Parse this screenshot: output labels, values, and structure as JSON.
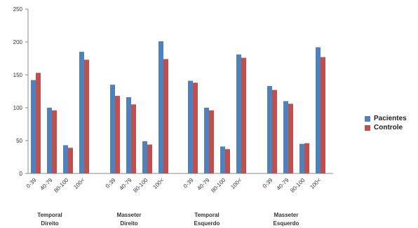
{
  "chart_data": {
    "type": "bar",
    "ylim": [
      0,
      250
    ],
    "yticks": [
      "0",
      "50",
      "100",
      "150",
      "200",
      "250"
    ],
    "categories": [
      "0-39",
      "40-79",
      "80-100",
      "100<"
    ],
    "groups": [
      {
        "label": "Temporal",
        "label2": "Direito"
      },
      {
        "label": "Masseter",
        "label2": "Direito"
      },
      {
        "label": "Temporal",
        "label2": "Esquerdo"
      },
      {
        "label": "Masseter",
        "label2": "Esquerdo"
      }
    ],
    "series": [
      {
        "name": "Pacientes",
        "color": "#4f81bd",
        "values": [
          [
            142,
            100,
            43,
            185
          ],
          [
            135,
            116,
            49,
            201
          ],
          [
            141,
            100,
            41,
            181
          ],
          [
            133,
            110,
            45,
            192
          ]
        ]
      },
      {
        "name": "Controle",
        "color": "#c0504d",
        "values": [
          [
            153,
            96,
            39,
            173
          ],
          [
            118,
            105,
            44,
            174
          ],
          [
            138,
            96,
            37,
            176
          ],
          [
            127,
            106,
            46,
            177
          ]
        ]
      }
    ],
    "grid": false,
    "legend_position": "right"
  }
}
